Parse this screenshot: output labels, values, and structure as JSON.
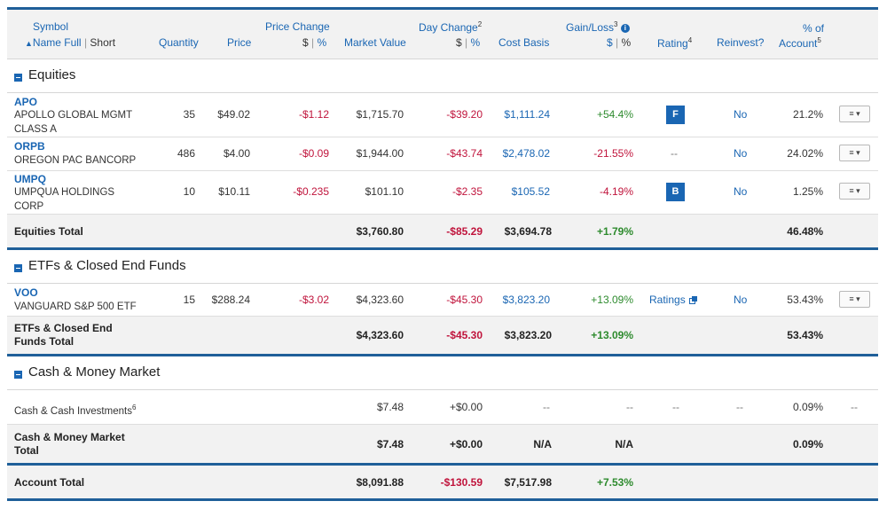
{
  "header": {
    "symbol": "Symbol",
    "name_full": "Name Full",
    "sort_arrow": "▲",
    "short": "Short",
    "quantity": "Quantity",
    "price": "Price",
    "price_change": "Price Change",
    "dollar": "$",
    "pct": "%",
    "market_value": "Market Value",
    "day_change": "Day Change",
    "day_change_sup": "2",
    "cost_basis": "Cost Basis",
    "gain_loss": "Gain/Loss",
    "gain_loss_sup": "3",
    "rating": "Rating",
    "rating_sup": "4",
    "reinvest": "Reinvest?",
    "pct_of": "% of",
    "account": "Account",
    "account_sup": "5"
  },
  "sections": {
    "equities": {
      "title": "Equities",
      "rows": [
        {
          "symbol": "APO",
          "name1": "APOLLO GLOBAL MGMT",
          "name2": "CLASS A",
          "quantity": "35",
          "price": "$49.02",
          "price_change": "-$1.12",
          "market_value": "$1,715.70",
          "day_change": "-$39.20",
          "cost_basis": "$1,111.24",
          "gain_loss": "+54.4%",
          "rating": "F",
          "reinvest": "No",
          "pct_account": "21.2%",
          "menu": "≡ ▾"
        },
        {
          "symbol": "ORPB",
          "name1": "OREGON PAC BANCORP",
          "quantity": "486",
          "price": "$4.00",
          "price_change": "-$0.09",
          "market_value": "$1,944.00",
          "day_change": "-$43.74",
          "cost_basis": "$2,478.02",
          "gain_loss": "-21.55%",
          "rating": "--",
          "reinvest": "No",
          "pct_account": "24.02%",
          "menu": "≡ ▾"
        },
        {
          "symbol": "UMPQ",
          "name1": "UMPQUA HOLDINGS",
          "name2": "CORP",
          "quantity": "10",
          "price": "$10.11",
          "price_change": "-$0.235",
          "market_value": "$101.10",
          "day_change": "-$2.35",
          "cost_basis": "$105.52",
          "gain_loss": "-4.19%",
          "rating": "B",
          "reinvest": "No",
          "pct_account": "1.25%",
          "menu": "≡ ▾"
        }
      ],
      "total": {
        "label": "Equities Total",
        "market_value": "$3,760.80",
        "day_change": "-$85.29",
        "cost_basis": "$3,694.78",
        "gain_loss": "+1.79%",
        "pct_account": "46.48%"
      }
    },
    "etfs": {
      "title": "ETFs & Closed End Funds",
      "rows": [
        {
          "symbol": "VOO",
          "name1": "VANGUARD S&P 500 ETF",
          "quantity": "15",
          "price": "$288.24",
          "price_change": "-$3.02",
          "market_value": "$4,323.60",
          "day_change": "-$45.30",
          "cost_basis": "$3,823.20",
          "gain_loss": "+13.09%",
          "rating": "Ratings",
          "reinvest": "No",
          "pct_account": "53.43%",
          "menu": "≡ ▾"
        }
      ],
      "total": {
        "label1": "ETFs & Closed End",
        "label2": "Funds Total",
        "market_value": "$4,323.60",
        "day_change": "-$45.30",
        "cost_basis": "$3,823.20",
        "gain_loss": "+13.09%",
        "pct_account": "53.43%"
      }
    },
    "cash": {
      "title": "Cash & Money Market",
      "row": {
        "name": "Cash & Cash Investments",
        "name_sup": "6",
        "market_value": "$7.48",
        "day_change": "+$0.00",
        "cost_basis": "--",
        "gain_loss": "--",
        "rating": "--",
        "reinvest": "--",
        "pct_account": "0.09%",
        "menu": "--"
      },
      "total": {
        "label1": "Cash & Money Market",
        "label2": "Total",
        "market_value": "$7.48",
        "day_change": "+$0.00",
        "cost_basis": "N/A",
        "gain_loss": "N/A",
        "pct_account": "0.09%"
      }
    }
  },
  "account_total": {
    "label": "Account Total",
    "market_value": "$8,091.88",
    "day_change": "-$130.59",
    "cost_basis": "$7,517.98",
    "gain_loss": "+7.53%"
  },
  "colors": {
    "accent": "#1f5f99",
    "link": "#1a66b3",
    "negative": "#c0143c",
    "positive": "#2e8b2e"
  }
}
